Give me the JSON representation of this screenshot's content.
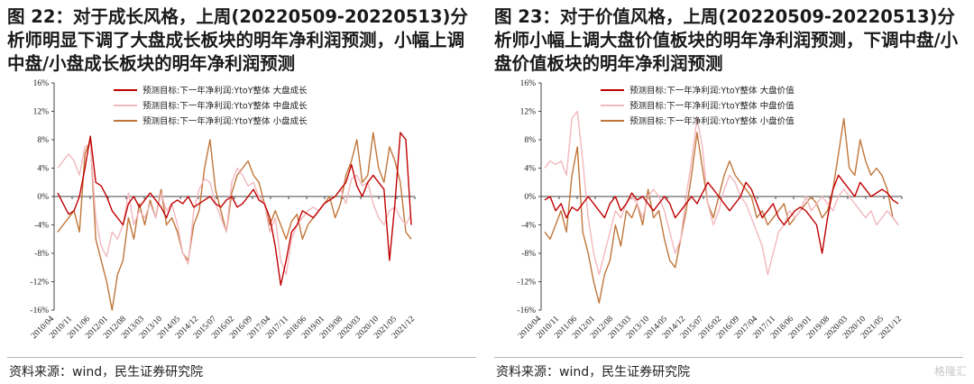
{
  "panels": [
    {
      "title": "图 22：对于成长风格，上周(20220509-20220513)分析师明显下调了大盘成长板块的明年净利润预测，小幅上调中盘/小盘成长板块的明年净利润预测",
      "source": "资料来源：wind，民生证券研究院"
    },
    {
      "title": "图 23：对于价值风格，上周(20220509-20220513)分析师小幅上调大盘价值板块的明年净利润预测，下调中盘/小盘价值板块的明年净利润预测",
      "source": "资料来源：wind，民生证券研究院"
    }
  ],
  "watermark": "格隆汇",
  "colors": {
    "large": "#c00000",
    "mid": "#f2b8be",
    "small": "#c0763a"
  },
  "chart_data": [
    {
      "type": "line",
      "ylabel": "",
      "ylim": [
        -16,
        16
      ],
      "y_ticks": [
        "16%",
        "12%",
        "8%",
        "4%",
        "0%",
        "-4%",
        "-8%",
        "-12%",
        "-16%"
      ],
      "x_ticks": [
        "2010/04",
        "2010/11",
        "2011/06",
        "2012/01",
        "2012/08",
        "2013/03",
        "2013/10",
        "2014/05",
        "2014/12",
        "2015/07",
        "2016/02",
        "2016/09",
        "2017/04",
        "2017/11",
        "2018/06",
        "2019/01",
        "2019/08",
        "2020/03",
        "2020/10",
        "2021/05",
        "2021/12"
      ],
      "legend": [
        "预测目标:下一年净利润:YtoY整体 大盘成长",
        "预测目标:下一年净利润:YtoY整体 中盘成长",
        "预测目标:下一年净利润:YtoY整体 小盘成长"
      ],
      "series": [
        {
          "name": "预测目标:下一年净利润:YtoY整体 大盘成长",
          "color": "#c00000",
          "values": [
            0.5,
            -1,
            -2.5,
            -2,
            0,
            4,
            8.5,
            2,
            1.5,
            0,
            -2,
            -3,
            -4,
            -1,
            0,
            -1.5,
            -0.5,
            0.5,
            -0.5,
            -1.5,
            -3,
            -1,
            -0.5,
            -1,
            0,
            -1.5,
            -1,
            -0.5,
            0,
            -1,
            -1.5,
            -0.5,
            0,
            -1.5,
            -1,
            0,
            1,
            -0.5,
            -1,
            -3,
            -7,
            -12.5,
            -9,
            -5,
            -4,
            -2,
            -2.5,
            -3,
            -2,
            -1,
            -0.5,
            0,
            1,
            2,
            4.5,
            1.5,
            0,
            2,
            3,
            2,
            1,
            -9,
            -1,
            9,
            8,
            -4
          ]
        },
        {
          "name": "预测目标:下一年净利润:YtoY整体 中盘成长",
          "color": "#f2b8be",
          "values": [
            4,
            5,
            6,
            5,
            3,
            7,
            7.5,
            -3,
            -7,
            -8.5,
            -5,
            -6,
            -4,
            0.5,
            -4,
            -2,
            -3,
            -1,
            -3,
            0.5,
            -2,
            -1,
            -4,
            -8,
            -9.5,
            -2,
            1,
            2.5,
            2,
            -1,
            -3,
            -5,
            2,
            4,
            3,
            1.5,
            2,
            0,
            -1,
            -5,
            -3,
            -9,
            -11,
            -6,
            -4,
            -3,
            -2,
            -1.5,
            -2,
            -1,
            -0.5,
            0,
            1,
            -1,
            2.5,
            3,
            1.5,
            2,
            -1,
            -3,
            -4,
            -2,
            -1.5,
            -3,
            -4,
            -2.5
          ]
        },
        {
          "name": "预测目标:下一年净利润:YtoY整体 小盘成长",
          "color": "#c0763a",
          "values": [
            -5,
            -4,
            -3,
            -2,
            -5,
            6,
            8,
            -6,
            -9,
            -12,
            -16,
            -11,
            -9,
            -3,
            -6,
            -1,
            -4,
            -0.5,
            -3,
            1,
            -4,
            -3,
            -5,
            -8,
            -9,
            -4,
            -2,
            4,
            8,
            1,
            -2,
            -5,
            0.5,
            3,
            4,
            5,
            3,
            2,
            -1,
            -4,
            -2,
            -4,
            -6,
            -3.5,
            -2.5,
            -6,
            -4,
            -3,
            -2,
            -1,
            0,
            -3,
            -1,
            3,
            5,
            8,
            2,
            3,
            9,
            4,
            2,
            7,
            5,
            2,
            -5,
            -6
          ]
        }
      ]
    },
    {
      "type": "line",
      "ylabel": "",
      "ylim": [
        -16,
        16
      ],
      "y_ticks": [
        "16%",
        "12%",
        "8%",
        "4%",
        "0%",
        "-4%",
        "-8%",
        "-12%",
        "-16%"
      ],
      "x_ticks": [
        "2010/04",
        "2010/11",
        "2011/06",
        "2012/01",
        "2012/08",
        "2013/03",
        "2013/10",
        "2014/05",
        "2014/12",
        "2015/07",
        "2016/02",
        "2016/09",
        "2017/04",
        "2017/11",
        "2018/06",
        "2019/01",
        "2019/08",
        "2020/03",
        "2020/10",
        "2021/05",
        "2021/12"
      ],
      "legend": [
        "预测目标:下一年净利润:YtoY整体 大盘价值",
        "预测目标:下一年净利润:YtoY整体 中盘价值",
        "预测目标:下一年净利润:YtoY整体 小盘价值"
      ],
      "series": [
        {
          "name": "预测目标:下一年净利润:YtoY整体 大盘价值",
          "color": "#c00000",
          "values": [
            -0.5,
            0,
            -2,
            -1,
            -3,
            -1.5,
            -2,
            -1,
            0,
            -1,
            -2,
            -3,
            -1,
            0,
            -2,
            -1,
            0.5,
            -0.5,
            0,
            -1,
            -2,
            -1,
            0,
            -1,
            -3,
            -2,
            -1,
            0,
            -1,
            0.5,
            2,
            1,
            0,
            -1,
            -2,
            -1,
            0,
            2,
            1,
            -1,
            -3,
            -2,
            -1,
            -3,
            -4,
            -3,
            -2,
            -1.5,
            -2,
            -3,
            -4,
            -8,
            -3,
            1,
            3,
            2,
            1,
            0,
            2,
            1,
            0,
            0.5,
            1,
            0.5,
            -0.5,
            -1
          ]
        },
        {
          "name": "预测目标:下一年净利润:YtoY整体 中盘价值",
          "color": "#f2b8be",
          "values": [
            4,
            5,
            4.5,
            5,
            3,
            11,
            12,
            5,
            -3,
            -8,
            -11,
            -8,
            -5,
            -2,
            -3,
            -1,
            0,
            -1,
            -3,
            0,
            1,
            0,
            -2,
            -5,
            -8,
            -6,
            0,
            5,
            11,
            7,
            -1,
            -4,
            -2,
            1,
            3,
            2,
            0,
            -1,
            -3,
            -5,
            -7,
            -11,
            -8,
            -5,
            -4,
            -2,
            -3,
            -2,
            0,
            -2,
            -1,
            0,
            -1,
            -2,
            0,
            1,
            0,
            -1,
            -2,
            -3,
            -2,
            -4,
            -3,
            -2,
            -3,
            -4
          ]
        },
        {
          "name": "预测目标:下一年净利润:YtoY整体 小盘价值",
          "color": "#c0763a",
          "values": [
            -5,
            -6,
            -4,
            -2,
            -5,
            3,
            7,
            -5,
            -8,
            -12,
            -15,
            -11,
            -9,
            -4,
            -7,
            -2,
            -3,
            -1,
            -4,
            1,
            -3,
            -2,
            -6,
            -9,
            -10,
            -6,
            -2,
            3,
            9,
            4,
            -1,
            -3,
            0,
            3,
            5,
            3,
            2,
            1,
            0,
            -3,
            -2,
            -4,
            -3,
            -2,
            -1,
            -4,
            -3,
            -2,
            -1,
            0,
            -1,
            -3,
            -2,
            1,
            6,
            11,
            4,
            3,
            8,
            5,
            3,
            4,
            3,
            1,
            -3,
            -4
          ]
        }
      ]
    }
  ]
}
